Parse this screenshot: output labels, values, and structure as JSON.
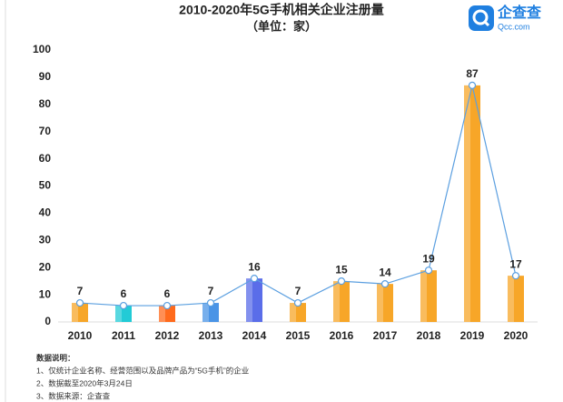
{
  "chart_data": {
    "type": "bar_line",
    "title": "2010-2020年5G手机相关企业注册量",
    "subtitle": "（单位：家）",
    "categories": [
      "2010",
      "2011",
      "2012",
      "2013",
      "2014",
      "2015",
      "2016",
      "2017",
      "2018",
      "2019",
      "2020"
    ],
    "values": [
      7,
      6,
      6,
      7,
      16,
      7,
      15,
      14,
      19,
      87,
      17
    ],
    "colors": [
      "#f7a628",
      "#22cbd6",
      "#ff6a1c",
      "#4a94e6",
      "#5a6de9",
      "#f7a628",
      "#f7a628",
      "#f7a628",
      "#f7a628",
      "#f7a628",
      "#f7a628"
    ],
    "line_color": "#5b9fe0",
    "ylim": [
      0,
      100
    ],
    "yticks": [
      0,
      10,
      20,
      30,
      40,
      50,
      60,
      70,
      80,
      90,
      100
    ],
    "grid": false
  },
  "logo": {
    "name": "企查查",
    "site": "Qcc.com"
  },
  "notes": [
    "数据说明：",
    "1、仅统计企业名称、经营范围以及品牌产品为“5G手机”的企业",
    "2、数据截至2020年3月24日",
    "3、数据来源：企查查"
  ]
}
